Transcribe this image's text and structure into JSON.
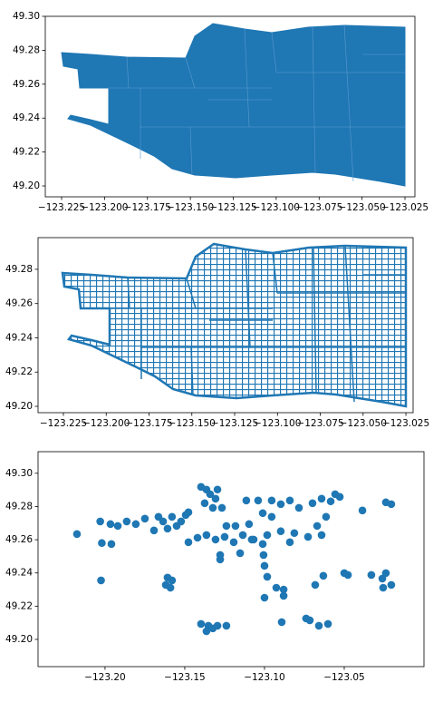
{
  "chart_data": [
    {
      "type": "polygon",
      "color": "#1f77b4",
      "xlim": [
        -123.2345,
        -123.0192
      ],
      "ylim": [
        49.1936,
        49.3
      ],
      "xticks": [
        {
          "value": -123.225,
          "label": "−123.225"
        },
        {
          "value": -123.2,
          "label": "−123.200"
        },
        {
          "value": -123.175,
          "label": "−123.175"
        },
        {
          "value": -123.15,
          "label": "−123.150"
        },
        {
          "value": -123.125,
          "label": "−123.125"
        },
        {
          "value": -123.1,
          "label": "−123.100"
        },
        {
          "value": -123.075,
          "label": "−123.075"
        },
        {
          "value": -123.05,
          "label": "−123.050"
        },
        {
          "value": -123.025,
          "label": "−123.025"
        }
      ],
      "yticks": [
        {
          "value": 49.2,
          "label": "49.20"
        },
        {
          "value": 49.22,
          "label": "49.22"
        },
        {
          "value": 49.24,
          "label": "49.24"
        },
        {
          "value": 49.26,
          "label": "49.26"
        },
        {
          "value": 49.28,
          "label": "49.28"
        },
        {
          "value": 49.3,
          "label": "49.30"
        }
      ]
    },
    {
      "type": "lines",
      "color": "#1f77b4",
      "xlim": [
        -123.2398,
        -123.0208
      ],
      "ylim": [
        49.1963,
        49.2985
      ],
      "xticks": [
        {
          "value": -123.225,
          "label": "−123.225"
        },
        {
          "value": -123.2,
          "label": "−123.200"
        },
        {
          "value": -123.175,
          "label": "−123.175"
        },
        {
          "value": -123.15,
          "label": "−123.150"
        },
        {
          "value": -123.125,
          "label": "−123.125"
        },
        {
          "value": -123.1,
          "label": "−123.100"
        },
        {
          "value": -123.075,
          "label": "−123.075"
        },
        {
          "value": -123.05,
          "label": "−123.050"
        },
        {
          "value": -123.025,
          "label": "−123.025"
        }
      ],
      "yticks": [
        {
          "value": 49.2,
          "label": "49.20"
        },
        {
          "value": 49.22,
          "label": "49.22"
        },
        {
          "value": 49.24,
          "label": "49.24"
        },
        {
          "value": 49.26,
          "label": "49.26"
        },
        {
          "value": 49.28,
          "label": "49.28"
        }
      ]
    },
    {
      "type": "scatter",
      "color": "#1f77b4",
      "xlim": [
        -123.242,
        -123.0
      ],
      "ylim": [
        49.1836,
        49.313
      ],
      "xticks": [
        {
          "value": -123.2,
          "label": "−123.20"
        },
        {
          "value": -123.15,
          "label": "−123.15"
        },
        {
          "value": -123.1,
          "label": "−123.10"
        },
        {
          "value": -123.05,
          "label": "−123.05"
        }
      ],
      "yticks": [
        {
          "value": 49.2,
          "label": "49.20"
        },
        {
          "value": 49.22,
          "label": "49.22"
        },
        {
          "value": 49.24,
          "label": "49.24"
        },
        {
          "value": 49.26,
          "label": "49.26"
        },
        {
          "value": 49.28,
          "label": "49.28"
        },
        {
          "value": 49.3,
          "label": "49.30"
        }
      ],
      "x": [
        -123.2176,
        -123.203,
        -123.202,
        -123.2025,
        -123.1966,
        -123.192,
        -123.1864,
        -123.1807,
        -123.175,
        -123.1693,
        -123.1665,
        -123.1636,
        -123.1608,
        -123.158,
        -123.1551,
        -123.1523,
        -123.1494,
        -123.196,
        -123.1608,
        -123.158,
        -123.1619,
        -123.159,
        -123.1477,
        -123.1398,
        -123.1364,
        -123.1341,
        -123.1307,
        -123.1375,
        -123.1295,
        -123.1267,
        -123.1324,
        -123.1477,
        -123.142,
        -123.1364,
        -123.1307,
        -123.125,
        -123.1193,
        -123.1136,
        -123.108,
        -123.1239,
        -123.1182,
        -123.1097,
        -123.1278,
        -123.1278,
        -123.1153,
        -123.1398,
        -123.1352,
        -123.1324,
        -123.1295,
        -123.1239,
        -123.1364,
        -123.1114,
        -123.104,
        -123.0955,
        -123.0898,
        -123.0841,
        -123.1011,
        -123.0955,
        -123.1068,
        -123.0983,
        -123.0898,
        -123.0813,
        -123.0727,
        -123.0642,
        -123.1011,
        -123.0841,
        -123.1006,
        -123.1,
        -123.0983,
        -123.1,
        -123.0926,
        -123.088,
        -123.088,
        -123.0892,
        -123.0784,
        -123.0699,
        -123.0642,
        -123.0614,
        -123.067,
        -123.0557,
        -123.0528,
        -123.0585,
        -123.0739,
        -123.0716,
        -123.0659,
        -123.0602,
        -123.0682,
        -123.0631,
        -123.05,
        -123.0477,
        -123.0386,
        -123.033,
        -123.0239,
        -123.0205,
        -123.0261,
        -123.0239,
        -123.0256,
        -123.0205
      ],
      "y": [
        49.2634,
        49.271,
        49.258,
        49.2355,
        49.2694,
        49.2683,
        49.271,
        49.2694,
        49.2727,
        49.2656,
        49.2738,
        49.271,
        49.2667,
        49.2738,
        49.2683,
        49.271,
        49.2749,
        49.2574,
        49.2372,
        49.2355,
        49.2328,
        49.2311,
        49.2765,
        49.2918,
        49.2902,
        49.2874,
        49.2847,
        49.282,
        49.2902,
        49.2792,
        49.2792,
        49.2585,
        49.2612,
        49.2628,
        49.2601,
        49.2617,
        49.2585,
        49.2628,
        49.2601,
        49.2683,
        49.2683,
        49.2694,
        49.2508,
        49.2481,
        49.2519,
        49.2093,
        49.2082,
        49.2066,
        49.2082,
        49.2082,
        49.2049,
        49.2836,
        49.2836,
        49.2836,
        49.2814,
        49.2836,
        49.276,
        49.2738,
        49.2601,
        49.2628,
        49.2651,
        49.264,
        49.2617,
        49.2628,
        49.2574,
        49.2585,
        49.2508,
        49.2443,
        49.2377,
        49.2251,
        49.2311,
        49.23,
        49.2262,
        49.2104,
        49.2792,
        49.282,
        49.2847,
        49.2738,
        49.2683,
        49.2874,
        49.2858,
        49.2831,
        49.2126,
        49.2115,
        49.2082,
        49.2093,
        49.2328,
        49.2383,
        49.2399,
        49.2388,
        49.2776,
        49.2388,
        49.2825,
        49.2814,
        49.2366,
        49.2399,
        49.2311,
        49.2328
      ]
    }
  ]
}
